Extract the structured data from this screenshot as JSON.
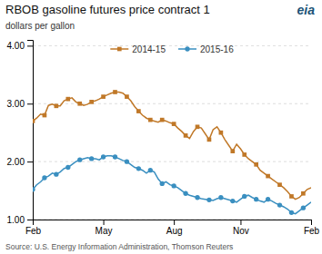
{
  "chart_data": {
    "type": "line",
    "title": "RBOB gasoline futures price contract 1",
    "ylabel": "dollars per gallon",
    "annotations": [
      "eia",
      "Source: U.S. Energy Information Administration, Thomson Reuters"
    ],
    "categories": [
      "Feb",
      null,
      null,
      null,
      null,
      null,
      null,
      null,
      null,
      null,
      null,
      null,
      null,
      null,
      null,
      null,
      null,
      null,
      "May",
      null,
      null,
      null,
      null,
      null,
      null,
      null,
      null,
      null,
      null,
      null,
      null,
      null,
      null,
      null,
      null,
      null,
      "Aug",
      null,
      null,
      null,
      null,
      null,
      null,
      null,
      null,
      null,
      null,
      null,
      null,
      null,
      null,
      null,
      null,
      "Nov",
      null,
      null,
      null,
      null,
      null,
      null,
      null,
      null,
      null,
      null,
      null,
      null,
      null,
      null,
      null,
      null,
      null,
      "Feb"
    ],
    "series": [
      {
        "name": "2014-15",
        "color": "#c07828",
        "marker": "square",
        "values": [
          2.7,
          2.75,
          2.82,
          2.8,
          2.97,
          2.99,
          2.96,
          2.96,
          3.05,
          3.08,
          3.1,
          3.03,
          3.0,
          2.97,
          2.99,
          3.03,
          3.05,
          3.08,
          3.12,
          3.15,
          3.18,
          3.2,
          3.2,
          3.18,
          3.12,
          3.05,
          2.95,
          2.87,
          2.8,
          2.75,
          2.72,
          2.7,
          2.68,
          2.72,
          2.7,
          2.67,
          2.65,
          2.58,
          2.52,
          2.45,
          2.4,
          2.52,
          2.6,
          2.58,
          2.48,
          2.38,
          2.55,
          2.6,
          2.5,
          2.38,
          2.28,
          2.18,
          2.3,
          2.22,
          2.12,
          2.05,
          2.0,
          1.95,
          1.85,
          1.8,
          1.75,
          1.7,
          1.65,
          1.6,
          1.55,
          1.48,
          1.4,
          1.35,
          1.38,
          1.45,
          1.52,
          1.55
        ]
      },
      {
        "name": "2015-16",
        "color": "#3a8fc0",
        "marker": "circle",
        "values": [
          1.52,
          1.6,
          1.65,
          1.72,
          1.75,
          1.8,
          1.78,
          1.82,
          1.88,
          1.9,
          1.95,
          2.0,
          2.03,
          2.05,
          2.07,
          2.05,
          2.05,
          2.03,
          2.08,
          2.1,
          2.1,
          2.08,
          2.05,
          2.02,
          2.0,
          1.95,
          1.9,
          1.88,
          1.85,
          1.8,
          1.85,
          1.82,
          1.7,
          1.62,
          1.65,
          1.6,
          1.58,
          1.55,
          1.5,
          1.45,
          1.42,
          1.4,
          1.38,
          1.36,
          1.35,
          1.34,
          1.33,
          1.36,
          1.38,
          1.36,
          1.34,
          1.32,
          1.3,
          1.35,
          1.4,
          1.42,
          1.38,
          1.35,
          1.32,
          1.3,
          1.35,
          1.32,
          1.28,
          1.25,
          1.22,
          1.18,
          1.12,
          1.1,
          1.15,
          1.2,
          1.25,
          1.3
        ]
      }
    ],
    "ylim": [
      1.0,
      4.1
    ],
    "yticks": [
      {
        "value": 1.0,
        "label": "1.00"
      },
      {
        "value": 2.0,
        "label": "2.00"
      },
      {
        "value": 3.0,
        "label": "3.00"
      },
      {
        "value": 4.0,
        "label": "4.00"
      }
    ],
    "grid": true,
    "legend": "top"
  }
}
